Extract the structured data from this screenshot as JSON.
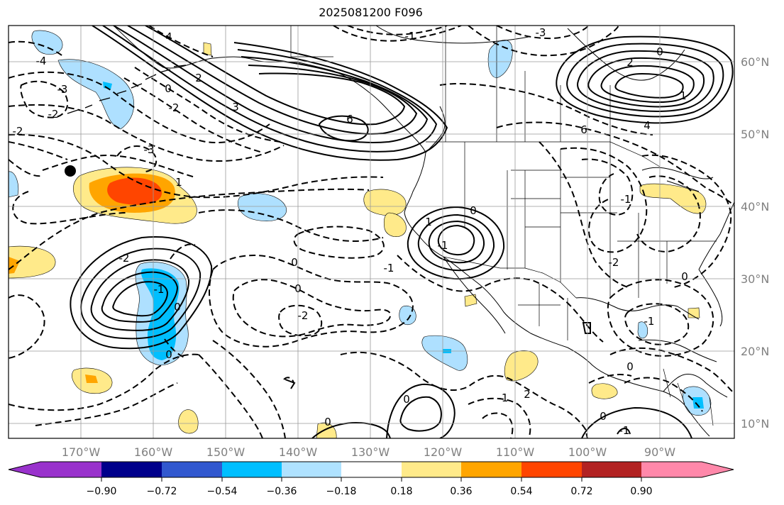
{
  "title": "2025081200 F096",
  "map": {
    "lon_range": [
      -180,
      -78
    ],
    "lat_range": [
      7.9,
      65.2
    ],
    "lon_ticks": [
      "170°W",
      "160°W",
      "150°W",
      "140°W",
      "130°W",
      "120°W",
      "110°W",
      "100°W",
      "90°W"
    ],
    "lat_ticks": [
      "60°N",
      "50°N",
      "40°N",
      "30°N",
      "20°N",
      "10°N"
    ],
    "contour_labels": [
      "-1",
      "-3",
      "4",
      "-4",
      "-3",
      "-2",
      "-2",
      "-3",
      "0",
      "-2",
      "2",
      "3",
      "6",
      "2",
      "0",
      "1",
      "4",
      "6",
      "0",
      "-1",
      "1",
      "-1",
      "0",
      "0",
      "-2",
      "0",
      "0",
      "-1",
      "-2",
      "-2",
      "0",
      "-1",
      "0",
      "2",
      "-1",
      "0",
      "-1",
      "0",
      "0",
      "-1",
      "1"
    ],
    "marker": "black-dot",
    "shading_colors": {
      "strong_neg": "#00bfff",
      "weak_neg": "#aee0ff",
      "weak_pos": "#ffea8a",
      "mid_pos": "#ffa500",
      "strong_pos": "#ff4500"
    }
  },
  "colorbar": {
    "colors": [
      "#9932cc",
      "#00008b",
      "#3158cf",
      "#00bfff",
      "#afe2ff",
      "#ffffff",
      "#ffea8a",
      "#ffa500",
      "#ff4500",
      "#b22222",
      "#ff88aa"
    ],
    "labels": [
      "−0.90",
      "−0.72",
      "−0.54",
      "−0.36",
      "−0.18",
      "0.18",
      "0.36",
      "0.54",
      "0.72",
      "0.90"
    ]
  }
}
